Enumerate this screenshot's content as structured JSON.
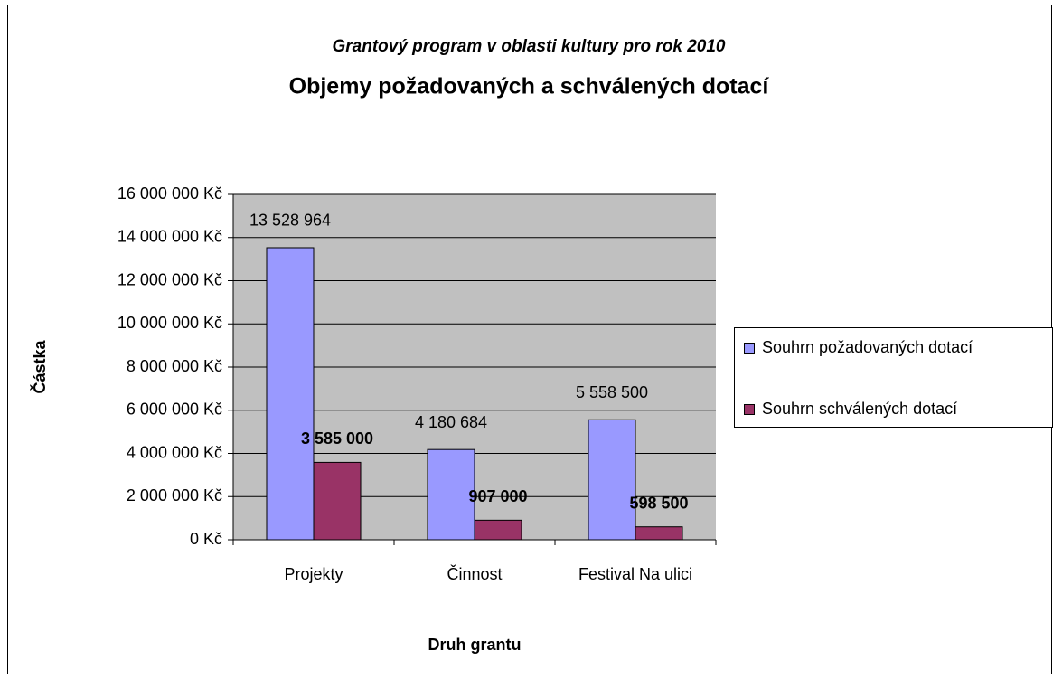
{
  "chart_data": {
    "type": "bar",
    "subtitle": "Grantový program v oblasti kultury pro rok 2010",
    "title": "Objemy požadovaných a schválených dotací",
    "y_label": "Částka",
    "x_label": "Druh grantu",
    "categories": [
      "Projekty",
      "Činnost",
      "Festival Na ulici"
    ],
    "series": [
      {
        "name": "Souhrn požadovaných dotací",
        "color": "#9999ff",
        "values": [
          13528964,
          4180684,
          5558500
        ],
        "value_labels": [
          "13 528 964",
          "4 180 684",
          "5 558 500"
        ]
      },
      {
        "name": "Souhrn schválených dotací",
        "color": "#993366",
        "values": [
          3585000,
          907000,
          598500
        ],
        "value_labels": [
          "3 585 000",
          "907 000",
          "598 500"
        ]
      }
    ],
    "ylim": [
      0,
      16000000
    ],
    "yticks": [
      {
        "value": 0,
        "label": "0 Kč"
      },
      {
        "value": 2000000,
        "label": "2 000 000 Kč"
      },
      {
        "value": 4000000,
        "label": "4 000 000 Kč"
      },
      {
        "value": 6000000,
        "label": "6 000 000 Kč"
      },
      {
        "value": 8000000,
        "label": "8 000 000 Kč"
      },
      {
        "value": 10000000,
        "label": "10 000 000 Kč"
      },
      {
        "value": 12000000,
        "label": "12 000 000 Kč"
      },
      {
        "value": 14000000,
        "label": "14 000 000 Kč"
      },
      {
        "value": 16000000,
        "label": "16 000 000 Kč"
      }
    ],
    "grid": true,
    "legend": "right"
  }
}
